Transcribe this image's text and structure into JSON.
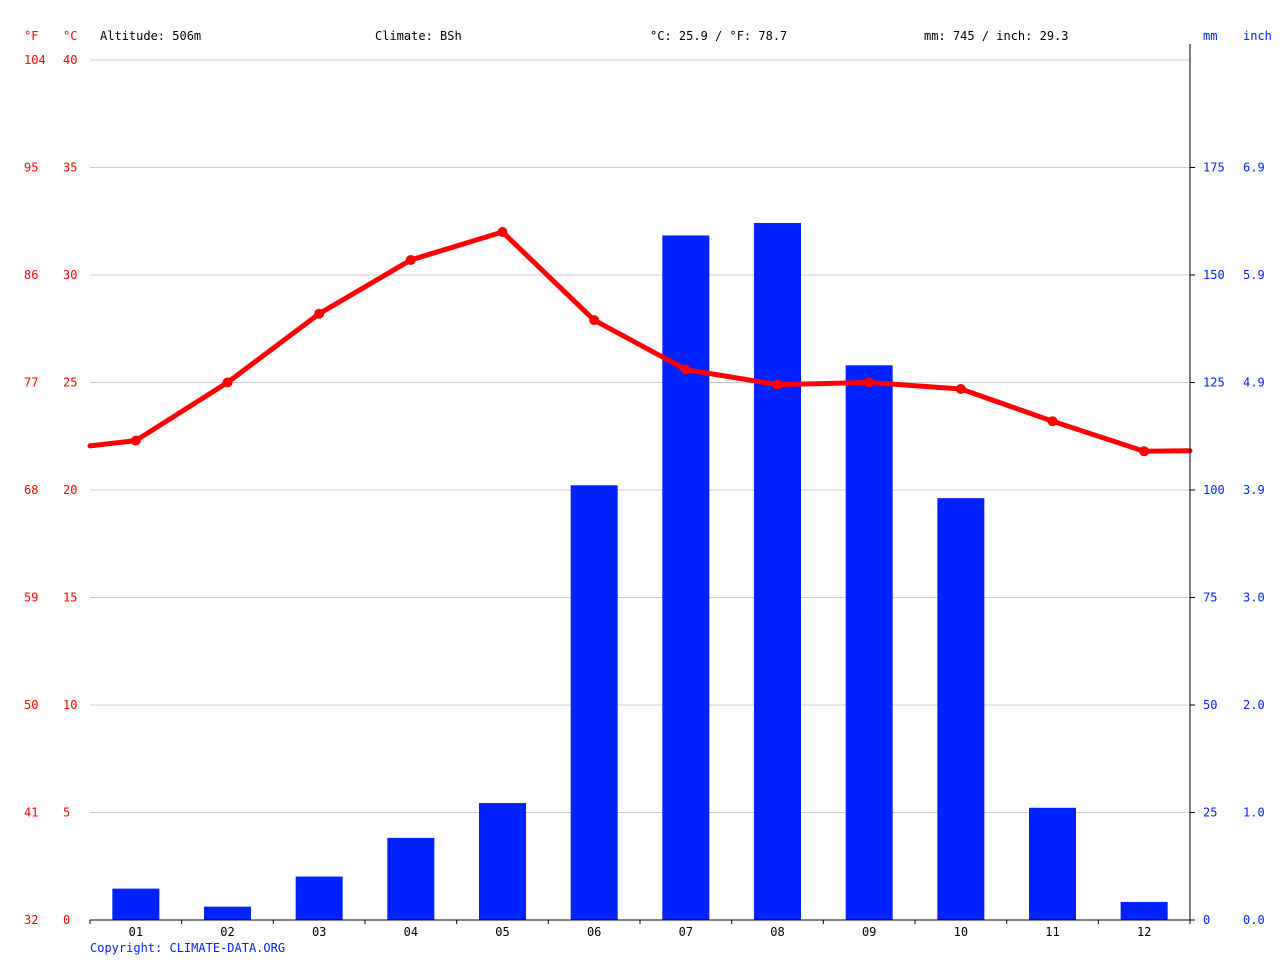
{
  "header": {
    "unit_f": "°F",
    "unit_c": "°C",
    "altitude": "Altitude: 506m",
    "climate": "Climate: BSh",
    "temp_avg": "°C: 25.9 / °F: 78.7",
    "precip_total": "mm: 745 / inch: 29.3",
    "unit_mm": "mm",
    "unit_inch": "inch"
  },
  "footer": {
    "copyright": "Copyright: CLIMATE-DATA.ORG"
  },
  "colors": {
    "temperature": "#ff0000",
    "precipitation": "#0022ff",
    "grid": "#cccccc"
  },
  "chart_data": {
    "type": "bar+line",
    "categories": [
      "01",
      "02",
      "03",
      "04",
      "05",
      "06",
      "07",
      "08",
      "09",
      "10",
      "11",
      "12"
    ],
    "series": [
      {
        "type": "bar",
        "values": [
          7.3,
          3.1,
          10.1,
          19.1,
          27.2,
          101.1,
          159.2,
          162.1,
          129.0,
          98.1,
          26.1,
          4.2
        ]
      },
      {
        "type": "line",
        "values": [
          22.3,
          25.0,
          28.2,
          30.7,
          32.0,
          27.9,
          25.6,
          24.9,
          25.0,
          24.7,
          23.2,
          21.8
        ]
      }
    ],
    "left_axis_c": {
      "ticks": [
        0,
        5,
        10,
        15,
        20,
        25,
        30,
        35,
        40
      ],
      "range": [
        0,
        40
      ]
    },
    "left_axis_f": {
      "ticks": [
        "32",
        "41",
        "50",
        "59",
        "68",
        "77",
        "86",
        "95",
        "104"
      ]
    },
    "right_axis_mm": {
      "ticks": [
        "0",
        "25",
        "50",
        "75",
        "100",
        "125",
        "150",
        "175"
      ],
      "range": [
        0,
        200
      ]
    },
    "right_axis_inch": {
      "ticks": [
        "0.0",
        "1.0",
        "2.0",
        "3.0",
        "3.9",
        "4.9",
        "5.9",
        "6.9"
      ]
    },
    "grid": true
  }
}
